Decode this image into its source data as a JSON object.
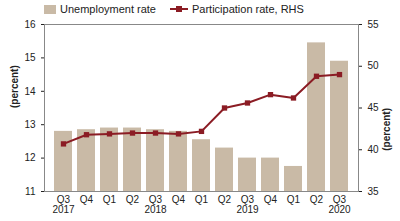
{
  "chart_data": {
    "type": "bar",
    "categories": [
      "Q3\n2017",
      "Q4",
      "Q1",
      "Q2",
      "Q3\n2018",
      "Q4",
      "Q1",
      "Q2",
      "Q3\n2019",
      "Q4",
      "Q1",
      "Q2",
      "Q3\n2020"
    ],
    "series": [
      {
        "name": "Unemployment rate",
        "type": "bar",
        "color": "#c9baa6",
        "values": [
          12.8,
          12.85,
          12.9,
          12.9,
          12.85,
          12.8,
          12.55,
          12.3,
          12.0,
          12.0,
          11.75,
          15.45,
          14.9
        ]
      },
      {
        "name": "Participation rate, RHS",
        "type": "line",
        "axis": "y2",
        "color": "#8b1c24",
        "marker": "square",
        "values": [
          40.7,
          41.8,
          41.9,
          42.0,
          42.0,
          41.9,
          42.2,
          45.0,
          45.6,
          46.6,
          46.2,
          48.8,
          49.0
        ]
      }
    ],
    "ylim": [
      11,
      16
    ],
    "yticks": [
      11,
      12,
      13,
      14,
      15,
      16
    ],
    "y2lim": [
      35,
      55
    ],
    "y2ticks": [
      35,
      40,
      45,
      50,
      55
    ],
    "y_label": "(percent)",
    "y2_label": "(percent)",
    "legend": "top-left"
  }
}
